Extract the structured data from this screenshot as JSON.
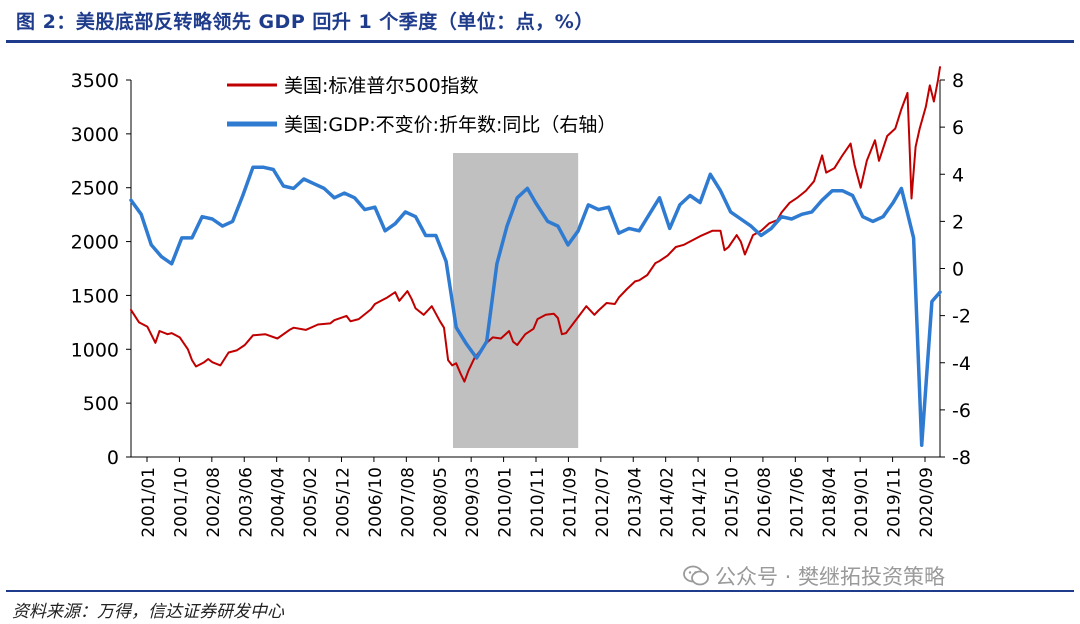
{
  "title": "图 2：美股底部反转略领先 GDP 回升 1 个季度（单位：点，%）",
  "source": "资料来源：万得，信达证券研发中心",
  "watermark": {
    "text": "公众号 · 樊继拓投资策略",
    "icon": "wechat-icon"
  },
  "chart_data": {
    "type": "line",
    "x_tick_labels": [
      "2001/01",
      "2001/10",
      "2002/08",
      "2003/06",
      "2004/04",
      "2005/02",
      "2005/12",
      "2006/10",
      "2007/08",
      "2008/05",
      "2009/03",
      "2010/01",
      "2010/11",
      "2011/09",
      "2012/07",
      "2013/04",
      "2014/02",
      "2014/12",
      "2015/10",
      "2016/08",
      "2017/06",
      "2018/04",
      "2019/01",
      "2019/11",
      "2020/09"
    ],
    "x_start": 2001.0,
    "x_end": 2020.9,
    "y_left": {
      "min": 0,
      "max": 3500,
      "ticks": [
        0,
        500,
        1000,
        1500,
        2000,
        2500,
        3000,
        3500
      ]
    },
    "y_right": {
      "min": -8,
      "max": 8,
      "ticks": [
        -8,
        -6,
        -4,
        -2,
        0,
        2,
        4,
        6,
        8
      ]
    },
    "shaded_region": {
      "start": 2008.92,
      "end": 2012.0,
      "color": "#c0c0c0"
    },
    "series": [
      {
        "name": "美国:标准普尔500指数",
        "axis": "left",
        "color": "#c00000",
        "points": [
          [
            2001.0,
            1366
          ],
          [
            2001.2,
            1250
          ],
          [
            2001.4,
            1211
          ],
          [
            2001.6,
            1060
          ],
          [
            2001.7,
            1170
          ],
          [
            2001.9,
            1140
          ],
          [
            2002.0,
            1150
          ],
          [
            2002.2,
            1110
          ],
          [
            2002.4,
            1000
          ],
          [
            2002.5,
            900
          ],
          [
            2002.6,
            840
          ],
          [
            2002.8,
            880
          ],
          [
            2002.9,
            910
          ],
          [
            2003.0,
            880
          ],
          [
            2003.2,
            850
          ],
          [
            2003.4,
            970
          ],
          [
            2003.6,
            990
          ],
          [
            2003.8,
            1040
          ],
          [
            2004.0,
            1130
          ],
          [
            2004.3,
            1140
          ],
          [
            2004.6,
            1100
          ],
          [
            2004.9,
            1180
          ],
          [
            2005.0,
            1200
          ],
          [
            2005.3,
            1180
          ],
          [
            2005.6,
            1230
          ],
          [
            2005.9,
            1240
          ],
          [
            2006.0,
            1270
          ],
          [
            2006.3,
            1310
          ],
          [
            2006.4,
            1260
          ],
          [
            2006.6,
            1280
          ],
          [
            2006.9,
            1370
          ],
          [
            2007.0,
            1420
          ],
          [
            2007.3,
            1480
          ],
          [
            2007.5,
            1530
          ],
          [
            2007.6,
            1450
          ],
          [
            2007.8,
            1540
          ],
          [
            2007.9,
            1470
          ],
          [
            2008.0,
            1380
          ],
          [
            2008.2,
            1320
          ],
          [
            2008.4,
            1400
          ],
          [
            2008.6,
            1260
          ],
          [
            2008.7,
            1200
          ],
          [
            2008.8,
            900
          ],
          [
            2008.9,
            850
          ],
          [
            2009.0,
            870
          ],
          [
            2009.1,
            780
          ],
          [
            2009.2,
            700
          ],
          [
            2009.3,
            800
          ],
          [
            2009.45,
            920
          ],
          [
            2009.6,
            990
          ],
          [
            2009.75,
            1060
          ],
          [
            2009.9,
            1110
          ],
          [
            2010.1,
            1100
          ],
          [
            2010.3,
            1170
          ],
          [
            2010.4,
            1070
          ],
          [
            2010.5,
            1040
          ],
          [
            2010.7,
            1140
          ],
          [
            2010.9,
            1190
          ],
          [
            2011.0,
            1280
          ],
          [
            2011.2,
            1320
          ],
          [
            2011.4,
            1330
          ],
          [
            2011.5,
            1290
          ],
          [
            2011.6,
            1140
          ],
          [
            2011.7,
            1150
          ],
          [
            2011.8,
            1200
          ],
          [
            2011.9,
            1250
          ],
          [
            2012.0,
            1300
          ],
          [
            2012.2,
            1400
          ],
          [
            2012.4,
            1320
          ],
          [
            2012.5,
            1360
          ],
          [
            2012.7,
            1430
          ],
          [
            2012.9,
            1420
          ],
          [
            2013.0,
            1480
          ],
          [
            2013.2,
            1560
          ],
          [
            2013.4,
            1630
          ],
          [
            2013.5,
            1640
          ],
          [
            2013.7,
            1690
          ],
          [
            2013.9,
            1800
          ],
          [
            2014.0,
            1820
          ],
          [
            2014.2,
            1870
          ],
          [
            2014.4,
            1950
          ],
          [
            2014.6,
            1970
          ],
          [
            2014.8,
            2010
          ],
          [
            2015.0,
            2050
          ],
          [
            2015.3,
            2100
          ],
          [
            2015.5,
            2100
          ],
          [
            2015.6,
            1920
          ],
          [
            2015.7,
            1950
          ],
          [
            2015.9,
            2060
          ],
          [
            2016.0,
            2000
          ],
          [
            2016.1,
            1880
          ],
          [
            2016.3,
            2060
          ],
          [
            2016.5,
            2100
          ],
          [
            2016.7,
            2170
          ],
          [
            2016.9,
            2200
          ],
          [
            2017.0,
            2270
          ],
          [
            2017.2,
            2360
          ],
          [
            2017.4,
            2410
          ],
          [
            2017.6,
            2470
          ],
          [
            2017.8,
            2560
          ],
          [
            2018.0,
            2800
          ],
          [
            2018.1,
            2640
          ],
          [
            2018.3,
            2680
          ],
          [
            2018.5,
            2800
          ],
          [
            2018.7,
            2910
          ],
          [
            2018.8,
            2710
          ],
          [
            2018.95,
            2500
          ],
          [
            2019.1,
            2750
          ],
          [
            2019.3,
            2940
          ],
          [
            2019.4,
            2750
          ],
          [
            2019.6,
            2980
          ],
          [
            2019.8,
            3050
          ],
          [
            2019.95,
            3230
          ],
          [
            2020.1,
            3380
          ],
          [
            2020.15,
            2900
          ],
          [
            2020.2,
            2400
          ],
          [
            2020.3,
            2880
          ],
          [
            2020.4,
            3050
          ],
          [
            2020.55,
            3250
          ],
          [
            2020.65,
            3450
          ],
          [
            2020.75,
            3300
          ],
          [
            2020.85,
            3500
          ],
          [
            2020.9,
            3620
          ]
        ]
      },
      {
        "name": "美国:GDP:不变价:折年数:同比（右轴）",
        "axis": "right",
        "color": "#2f7bd1",
        "points": [
          [
            2001.0,
            2.9
          ],
          [
            2001.25,
            2.3
          ],
          [
            2001.5,
            1.0
          ],
          [
            2001.75,
            0.5
          ],
          [
            2002.0,
            0.2
          ],
          [
            2002.25,
            1.3
          ],
          [
            2002.5,
            1.3
          ],
          [
            2002.75,
            2.2
          ],
          [
            2003.0,
            2.1
          ],
          [
            2003.25,
            1.8
          ],
          [
            2003.5,
            2.0
          ],
          [
            2003.75,
            3.1
          ],
          [
            2004.0,
            4.3
          ],
          [
            2004.25,
            4.3
          ],
          [
            2004.5,
            4.2
          ],
          [
            2004.75,
            3.5
          ],
          [
            2005.0,
            3.4
          ],
          [
            2005.25,
            3.8
          ],
          [
            2005.5,
            3.6
          ],
          [
            2005.75,
            3.4
          ],
          [
            2006.0,
            3.0
          ],
          [
            2006.25,
            3.2
          ],
          [
            2006.5,
            3.0
          ],
          [
            2006.75,
            2.5
          ],
          [
            2007.0,
            2.6
          ],
          [
            2007.25,
            1.6
          ],
          [
            2007.5,
            1.9
          ],
          [
            2007.75,
            2.4
          ],
          [
            2008.0,
            2.2
          ],
          [
            2008.25,
            1.4
          ],
          [
            2008.5,
            1.4
          ],
          [
            2008.75,
            0.3
          ],
          [
            2009.0,
            -2.5
          ],
          [
            2009.25,
            -3.2
          ],
          [
            2009.5,
            -3.8
          ],
          [
            2009.75,
            -3.1
          ],
          [
            2010.0,
            0.2
          ],
          [
            2010.25,
            1.8
          ],
          [
            2010.5,
            3.0
          ],
          [
            2010.75,
            3.4
          ],
          [
            2010.95,
            2.8
          ],
          [
            2011.25,
            2.0
          ],
          [
            2011.5,
            1.8
          ],
          [
            2011.75,
            1.0
          ],
          [
            2012.0,
            1.6
          ],
          [
            2012.25,
            2.7
          ],
          [
            2012.5,
            2.5
          ],
          [
            2012.75,
            2.6
          ],
          [
            2013.0,
            1.5
          ],
          [
            2013.25,
            1.7
          ],
          [
            2013.5,
            1.6
          ],
          [
            2013.75,
            2.3
          ],
          [
            2014.0,
            3.0
          ],
          [
            2014.25,
            1.7
          ],
          [
            2014.5,
            2.7
          ],
          [
            2014.75,
            3.1
          ],
          [
            2015.0,
            2.8
          ],
          [
            2015.25,
            4.0
          ],
          [
            2015.5,
            3.3
          ],
          [
            2015.75,
            2.4
          ],
          [
            2016.0,
            2.1
          ],
          [
            2016.25,
            1.8
          ],
          [
            2016.5,
            1.4
          ],
          [
            2016.75,
            1.7
          ],
          [
            2017.0,
            2.2
          ],
          [
            2017.25,
            2.1
          ],
          [
            2017.5,
            2.3
          ],
          [
            2017.75,
            2.4
          ],
          [
            2018.0,
            2.9
          ],
          [
            2018.25,
            3.3
          ],
          [
            2018.5,
            3.3
          ],
          [
            2018.75,
            3.1
          ],
          [
            2019.0,
            2.2
          ],
          [
            2019.25,
            2.0
          ],
          [
            2019.5,
            2.2
          ],
          [
            2019.75,
            2.8
          ],
          [
            2019.95,
            3.4
          ],
          [
            2020.25,
            1.3
          ],
          [
            2020.45,
            -7.5
          ],
          [
            2020.7,
            -1.4
          ],
          [
            2020.9,
            -1.0
          ]
        ]
      }
    ]
  }
}
